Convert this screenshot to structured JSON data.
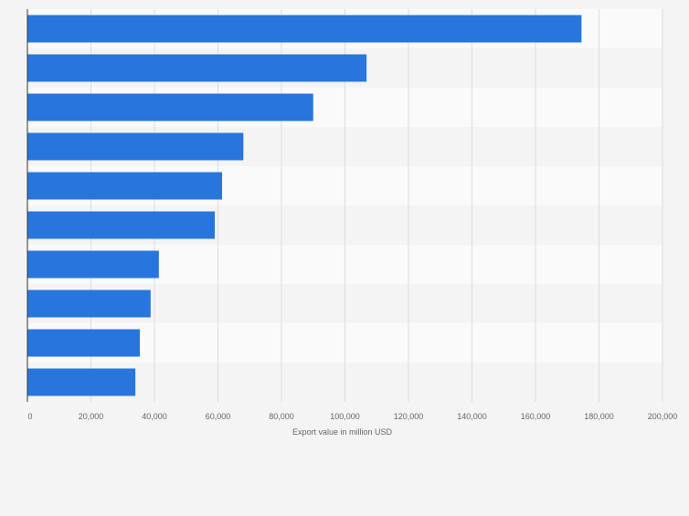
{
  "chart_data": {
    "type": "bar",
    "orientation": "horizontal",
    "categories": [
      "",
      "",
      "",
      "",
      "",
      "",
      "",
      "",
      "",
      ""
    ],
    "values": [
      174500,
      106800,
      90000,
      68000,
      61300,
      59000,
      41400,
      38800,
      35400,
      34000
    ],
    "xlabel": "Export value in million USD",
    "xlim": [
      0,
      200000
    ],
    "xticks": [
      0,
      20000,
      40000,
      60000,
      80000,
      100000,
      120000,
      140000,
      160000,
      180000,
      200000
    ],
    "xtick_labels": [
      "0",
      "20,000",
      "40,000",
      "60,000",
      "80,000",
      "100,000",
      "120,000",
      "140,000",
      "160,000",
      "180,000",
      "200,000"
    ],
    "grid": true,
    "legend": "none"
  },
  "colors": {
    "bar": "#2876dd",
    "background": "#f4f4f4",
    "band_light": "#fafafa",
    "band_dark": "#f4f4f4",
    "gridline": "#dcdcdc",
    "axis_line": "#333333",
    "tick_text": "#666666"
  }
}
